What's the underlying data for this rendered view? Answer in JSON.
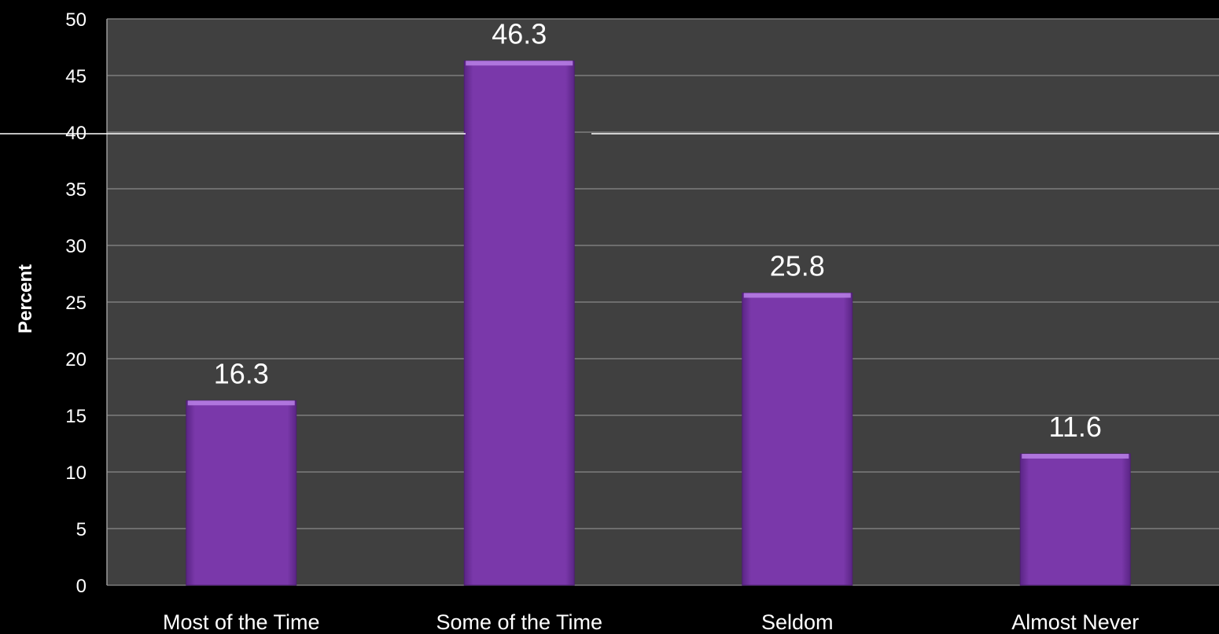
{
  "chart_data": {
    "type": "bar",
    "title": "",
    "xlabel": "",
    "ylabel": "Percent",
    "categories": [
      "Most of the Time",
      "Some of the Time",
      "Seldom",
      "Almost Never"
    ],
    "values": [
      16.3,
      46.3,
      25.8,
      11.6
    ],
    "ylim": [
      0,
      50
    ],
    "yticks": [
      "0",
      "5",
      "10",
      "15",
      "20",
      "25",
      "30",
      "35",
      "40",
      "45",
      "50"
    ],
    "data_labels": [
      "16.3",
      "46.3",
      "25.8",
      "11.6"
    ],
    "grid": true,
    "legend": "none",
    "colors": {
      "background": "#000000",
      "plot_area": "#404040",
      "bar": "#7a38aa",
      "bar_highlight": "#b980e6",
      "bar_shadow": "#4e1f73",
      "gridline": "#8a8a8a",
      "text": "#ffffff"
    }
  }
}
